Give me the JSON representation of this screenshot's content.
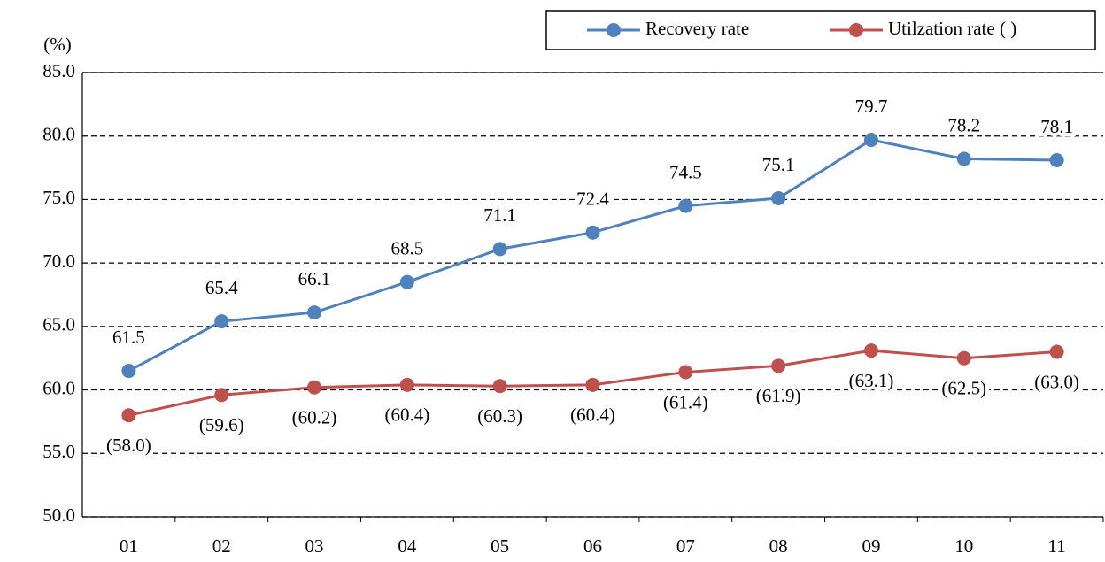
{
  "chart_data": {
    "type": "line",
    "y_label": "(%)",
    "categories": [
      "01",
      "02",
      "03",
      "04",
      "05",
      "06",
      "07",
      "08",
      "09",
      "10",
      "11"
    ],
    "series": [
      {
        "name": "Recovery rate",
        "color": "#4f81bd",
        "values": [
          61.5,
          65.4,
          66.1,
          68.5,
          71.1,
          72.4,
          74.5,
          75.1,
          79.7,
          78.2,
          78.1
        ]
      },
      {
        "name": "Utilzation rate ( )",
        "color": "#c0504d",
        "values": [
          58.0,
          59.6,
          60.2,
          60.4,
          60.3,
          60.4,
          61.4,
          61.9,
          63.1,
          62.5,
          63.0
        ],
        "value_labels": [
          "(58.0)",
          "(59.6)",
          "(60.2)",
          "(60.4)",
          "(60.3)",
          "(60.4)",
          "(61.4)",
          "(61.9)",
          "(63.1)",
          "(62.5)",
          "(63.0)"
        ]
      }
    ],
    "ylim": [
      50,
      85
    ],
    "yticks": [
      {
        "value": 50,
        "label": "50.0"
      },
      {
        "value": 55,
        "label": "55.0"
      },
      {
        "value": 60,
        "label": "60.0"
      },
      {
        "value": 65,
        "label": "65.0"
      },
      {
        "value": 70,
        "label": "70.0"
      },
      {
        "value": 75,
        "label": "75.0"
      },
      {
        "value": 80,
        "label": "80.0"
      },
      {
        "value": 85,
        "label": "85.0"
      }
    ],
    "grid": true
  }
}
